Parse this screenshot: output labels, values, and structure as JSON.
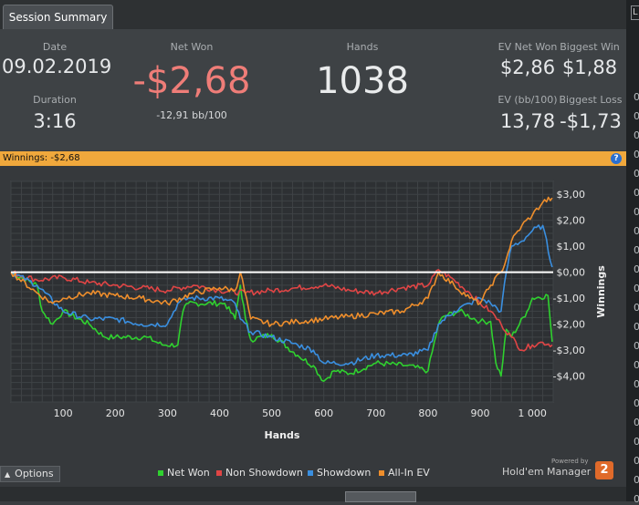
{
  "tab": {
    "label": "Session Summary"
  },
  "summary": {
    "date": {
      "label": "Date",
      "value": "09.02.2019"
    },
    "duration": {
      "label": "Duration",
      "value": "3:16"
    },
    "net_won": {
      "label": "Net Won",
      "value": "-$2,68",
      "sub": "-12,91 bb/100"
    },
    "hands": {
      "label": "Hands",
      "value": "1038"
    },
    "ev_net_won": {
      "label": "EV Net Won",
      "value": "$2,86"
    },
    "biggest_win": {
      "label": "Biggest Win",
      "value": "$1,88"
    },
    "ev_bb100": {
      "label": "EV (bb/100)",
      "value": "13,78"
    },
    "biggest_loss": {
      "label": "Biggest Loss",
      "value": "-$1,73"
    }
  },
  "winnings_bar": {
    "text": "Winnings:  -$2,68"
  },
  "options_button": {
    "label": "Options"
  },
  "powered_by": {
    "line1": "Powered by",
    "line2": "Hold'em Manager",
    "badge": "2"
  },
  "colors": {
    "net_won": "#2fd12f",
    "non_showdown": "#e04545",
    "showdown": "#3a8fe0",
    "all_in_ev": "#ee8e2c",
    "winnings_bar": "#f0a83c"
  },
  "chart_data": {
    "type": "line",
    "xlabel": "Hands",
    "ylabel": "Winnings",
    "xlim": [
      0,
      1040
    ],
    "ylim": [
      -5,
      3.5
    ],
    "xticks": [
      100,
      200,
      300,
      400,
      500,
      600,
      700,
      800,
      900,
      1000
    ],
    "xtick_labels": [
      "100",
      "200",
      "300",
      "400",
      "500",
      "600",
      "700",
      "800",
      "900",
      "1 000"
    ],
    "yticks": [
      3,
      2,
      1,
      0,
      -1,
      -2,
      -3,
      -4
    ],
    "ytick_labels": [
      "$3,00",
      "$2,00",
      "$1,00",
      "$0,00",
      "-$1,00",
      "-$2,00",
      "-$3,00",
      "-$4,00"
    ],
    "grid": true,
    "legend_position": "bottom",
    "series": [
      {
        "name": "Net Won",
        "color": "#2fd12f",
        "x": [
          0,
          50,
          60,
          80,
          100,
          150,
          180,
          200,
          260,
          290,
          320,
          330,
          340,
          410,
          430,
          440,
          450,
          460,
          500,
          550,
          580,
          600,
          620,
          650,
          700,
          760,
          800,
          820,
          830,
          860,
          900,
          920,
          930,
          940,
          950,
          960,
          990,
          1000,
          1030,
          1038
        ],
        "y": [
          0,
          -0.5,
          -1.5,
          -2.0,
          -1.5,
          -2.0,
          -2.5,
          -2.5,
          -2.5,
          -2.8,
          -2.8,
          -1.5,
          -1.2,
          -1.2,
          -1.8,
          -0.5,
          -1.8,
          -2.6,
          -2.4,
          -3.2,
          -3.6,
          -4.2,
          -3.8,
          -3.9,
          -3.5,
          -3.6,
          -3.8,
          -2.0,
          -1.7,
          -1.5,
          -1.9,
          -1.9,
          -3.5,
          -4.0,
          -2.2,
          -2.5,
          -1.5,
          -1.0,
          -0.9,
          -2.68
        ]
      },
      {
        "name": "Non Showdown",
        "color": "#e04545",
        "x": [
          0,
          50,
          100,
          150,
          200,
          250,
          300,
          350,
          400,
          450,
          500,
          550,
          600,
          650,
          700,
          750,
          800,
          820,
          850,
          880,
          900,
          920,
          940,
          960,
          980,
          1000,
          1020,
          1038
        ],
        "y": [
          0,
          -0.3,
          -0.2,
          -0.4,
          -0.5,
          -0.6,
          -0.7,
          -0.5,
          -0.7,
          -0.8,
          -0.7,
          -0.6,
          -0.5,
          -0.7,
          -0.8,
          -0.6,
          -0.5,
          0.1,
          -0.3,
          -0.8,
          -1.2,
          -1.5,
          -2.0,
          -2.5,
          -3.0,
          -2.8,
          -2.7,
          -2.8
        ]
      },
      {
        "name": "Showdown",
        "color": "#3a8fe0",
        "x": [
          0,
          50,
          100,
          150,
          200,
          250,
          300,
          320,
          340,
          400,
          430,
          440,
          460,
          500,
          550,
          580,
          600,
          650,
          700,
          760,
          800,
          820,
          850,
          880,
          900,
          920,
          940,
          950,
          960,
          980,
          1000,
          1020,
          1038
        ],
        "y": [
          0,
          -0.5,
          -1.5,
          -1.8,
          -1.8,
          -2.0,
          -2.0,
          -1.2,
          -1.0,
          -1.0,
          -1.2,
          -1.8,
          -2.3,
          -2.5,
          -2.8,
          -3.0,
          -3.5,
          -3.5,
          -3.2,
          -3.2,
          -3.0,
          -2.0,
          -1.5,
          -1.2,
          -1.0,
          -1.2,
          -1.5,
          0.0,
          1.0,
          1.2,
          1.6,
          1.8,
          0.2
        ]
      },
      {
        "name": "All-In EV",
        "color": "#ee8e2c",
        "x": [
          0,
          50,
          80,
          100,
          150,
          200,
          250,
          300,
          350,
          400,
          430,
          440,
          460,
          500,
          550,
          600,
          650,
          700,
          750,
          800,
          820,
          850,
          880,
          900,
          920,
          940,
          950,
          960,
          980,
          1000,
          1020,
          1038
        ],
        "y": [
          0,
          -0.8,
          -1.2,
          -1.0,
          -0.8,
          -0.9,
          -1.0,
          -1.2,
          -0.8,
          -0.6,
          -0.7,
          0.0,
          -1.8,
          -2.0,
          -1.9,
          -1.8,
          -1.7,
          -1.6,
          -1.5,
          -1.0,
          0.0,
          -0.5,
          -1.0,
          -1.2,
          -0.5,
          0.0,
          0.5,
          1.2,
          1.8,
          2.2,
          2.7,
          2.86
        ]
      }
    ]
  }
}
